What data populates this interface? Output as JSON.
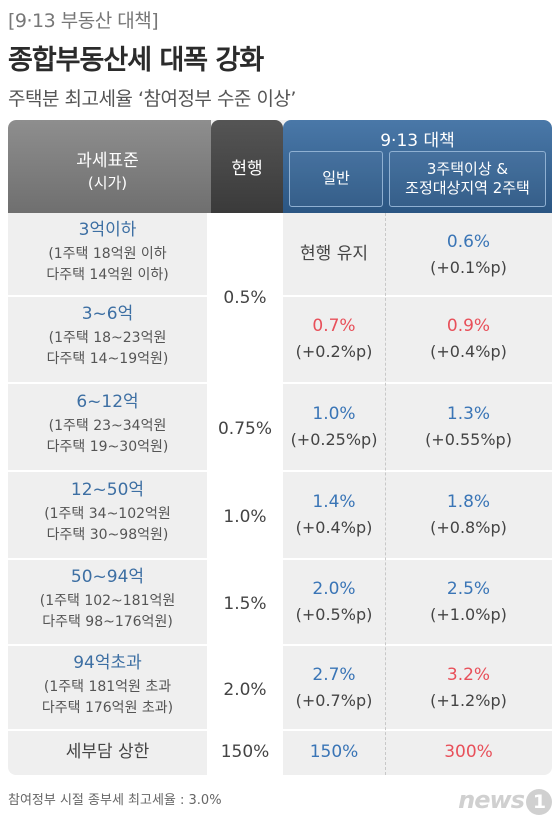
{
  "kicker": "[9·13 부동산 대책]",
  "title": "종합부동산세 대폭 강화",
  "subtitle": "주택분 최고세율 ‘참여정부 수준 이상’",
  "header": {
    "col1_line1": "과세표준",
    "col1_line2": "(시가)",
    "col2": "현행",
    "group": "9·13 대책",
    "col3": "일반",
    "col4_line1": "3주택이상 &",
    "col4_line2": "조정대상지역 2주택"
  },
  "rows": [
    {
      "bracket": "3억이하",
      "line1": "(1주택 18억원 이하",
      "line2": "다주택 14억원 이하)",
      "general": "현행 유지",
      "general_delta": "",
      "multi": "0.6%",
      "multi_delta": "(+0.1%p)"
    },
    {
      "bracket": "3~6억",
      "line1": "(1주택 18~23억원",
      "line2": "다주택 14~19억원)",
      "general": "0.7%",
      "general_delta": "(+0.2%p)",
      "multi": "0.9%",
      "multi_delta": "(+0.4%p)"
    },
    {
      "bracket": "6~12억",
      "line1": "(1주택 23~34억원",
      "line2": "다주택 19~30억원)",
      "current": "0.75%",
      "general": "1.0%",
      "general_delta": "(+0.25%p)",
      "multi": "1.3%",
      "multi_delta": "(+0.55%p)"
    },
    {
      "bracket": "12~50억",
      "line1": "(1주택 34~102억원",
      "line2": "다주택 30~98억원)",
      "current": "1.0%",
      "general": "1.4%",
      "general_delta": "(+0.4%p)",
      "multi": "1.8%",
      "multi_delta": "(+0.8%p)"
    },
    {
      "bracket": "50~94억",
      "line1": "(1주택 102~181억원",
      "line2": "다주택 98~176억원)",
      "current": "1.5%",
      "general": "2.0%",
      "general_delta": "(+0.5%p)",
      "multi": "2.5%",
      "multi_delta": "(+1.0%p)"
    },
    {
      "bracket": "94억초과",
      "line1": "(1주택 181억원 초과",
      "line2": "다주택 176억원 초과)",
      "current": "2.0%",
      "general": "2.7%",
      "general_delta": "(+0.7%p)",
      "multi": "3.2%",
      "multi_delta": "(+1.2%p)"
    }
  ],
  "merged_current_rows_1_2": "0.5%",
  "cap": {
    "label": "세부담 상한",
    "current": "150%",
    "general": "150%",
    "multi": "300%"
  },
  "footnote": "참여정부 시절 종부세 최고세율 : 3.0%",
  "logo_text": "news",
  "logo_num": "1",
  "colors": {
    "blue": "#3a75b6",
    "red": "#e8505a",
    "header_blue": "#2b5683",
    "header_gray": "#7a7a7a",
    "header_dark": "#444444"
  }
}
